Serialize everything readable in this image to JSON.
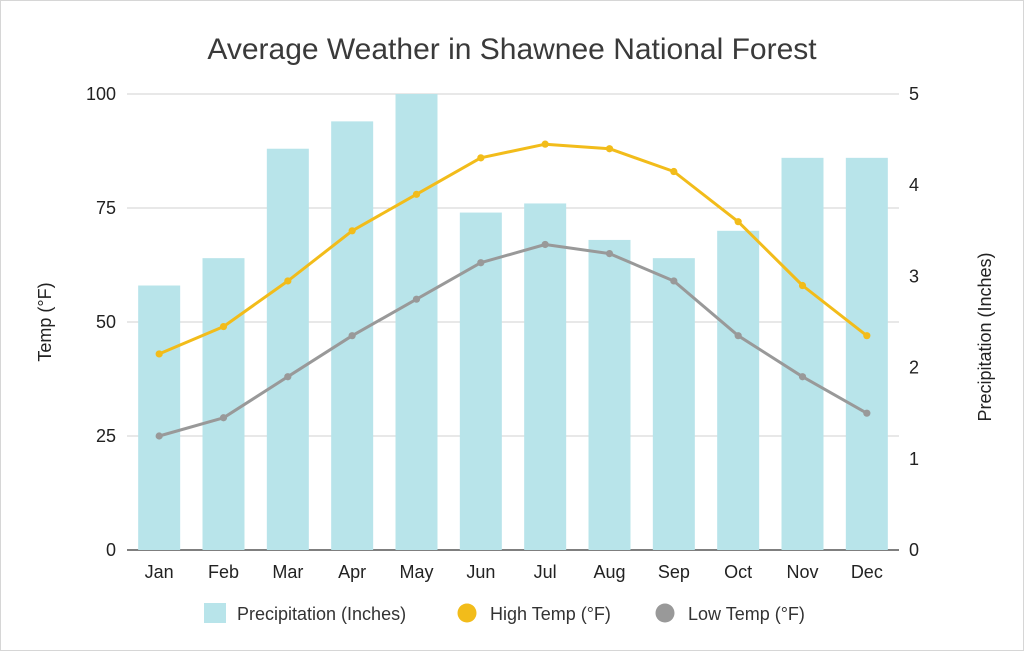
{
  "chart_data": {
    "type": "bar",
    "title": "Average Weather in Shawnee National Forest",
    "categories": [
      "Jan",
      "Feb",
      "Mar",
      "Apr",
      "May",
      "Jun",
      "Jul",
      "Aug",
      "Sep",
      "Oct",
      "Nov",
      "Dec"
    ],
    "series": [
      {
        "name": "Precipitation (Inches)",
        "type": "bar",
        "axis": "right",
        "color": "#b8e4ea",
        "values": [
          2.9,
          3.2,
          4.4,
          4.7,
          5.0,
          3.7,
          3.8,
          3.4,
          3.2,
          3.5,
          4.3,
          4.3
        ]
      },
      {
        "name": "High Temp (°F)",
        "type": "line",
        "axis": "left",
        "color": "#f2bc1a",
        "values": [
          43,
          49,
          59,
          70,
          78,
          86,
          89,
          88,
          83,
          72,
          58,
          47
        ]
      },
      {
        "name": "Low Temp (°F)",
        "type": "line",
        "axis": "left",
        "color": "#999999",
        "values": [
          25,
          29,
          38,
          47,
          55,
          63,
          67,
          65,
          59,
          47,
          38,
          30
        ]
      }
    ],
    "ylabel_left": "Temp (°F)",
    "ylabel_right": "Precipitation (Inches)",
    "ylim_left": [
      0,
      100
    ],
    "ylim_right": [
      0,
      5
    ],
    "yticks_left": [
      "0",
      "25",
      "50",
      "75",
      "100"
    ],
    "yticks_right": [
      "0",
      "1",
      "2",
      "3",
      "4",
      "5"
    ],
    "grid": true,
    "legend_position": "bottom"
  }
}
